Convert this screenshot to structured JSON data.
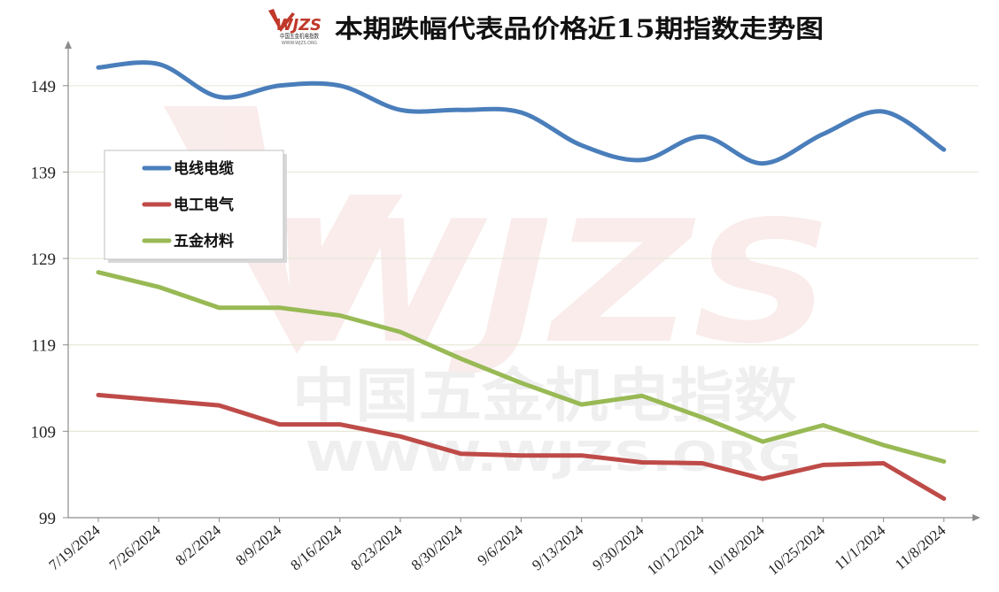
{
  "logo": {
    "brand": "WJZS",
    "subtitle": "中国五金机电指数",
    "url": "WWW.WJZS.ORG"
  },
  "watermark": {
    "brand": "WJZS",
    "name": "中国五金机电指数",
    "url": "WWW.WJZS.ORG"
  },
  "colors": {
    "cable": "#4a7ebb",
    "electrical": "#be4b48",
    "hardware": "#98b954",
    "grid": "#e8e8d8",
    "axis": "#8c8c8c"
  },
  "chart_data": {
    "type": "line",
    "title": "本期跌幅代表品价格近15期指数走势图",
    "xlabel": "",
    "ylabel": "",
    "categories": [
      "7/19/2024",
      "7/26/2024",
      "8/2/2024",
      "8/9/2024",
      "8/16/2024",
      "8/23/2024",
      "8/30/2024",
      "9/6/2024",
      "9/13/2024",
      "9/30/2024",
      "10/12/2024",
      "10/18/2024",
      "10/25/2024",
      "11/1/2024",
      "11/8/2024"
    ],
    "ylim": [
      99,
      154
    ],
    "yticks": [
      99,
      109,
      119,
      129,
      139,
      149
    ],
    "grid": true,
    "legend_position": "left",
    "series": [
      {
        "name": "电线电缆",
        "color": "#4a7ebb",
        "smooth": true,
        "values": [
          151.1,
          151.5,
          147.7,
          149,
          149,
          146.2,
          146.2,
          145.9,
          142.1,
          140.4,
          143.1,
          140,
          143.4,
          146,
          141.6
        ]
      },
      {
        "name": "电工电气",
        "color": "#be4b48",
        "smooth": false,
        "values": [
          113.2,
          112.6,
          112,
          109.8,
          109.8,
          108.4,
          106.4,
          106.2,
          106.2,
          105.4,
          105.3,
          103.5,
          105.1,
          105.3,
          101.2
        ]
      },
      {
        "name": "五金材料",
        "color": "#98b954",
        "smooth": false,
        "values": [
          127.4,
          125.7,
          123.3,
          123.3,
          122.4,
          120.5,
          117.4,
          114.6,
          112.1,
          113.1,
          110.6,
          107.8,
          109.7,
          107.4,
          105.5
        ]
      }
    ]
  }
}
